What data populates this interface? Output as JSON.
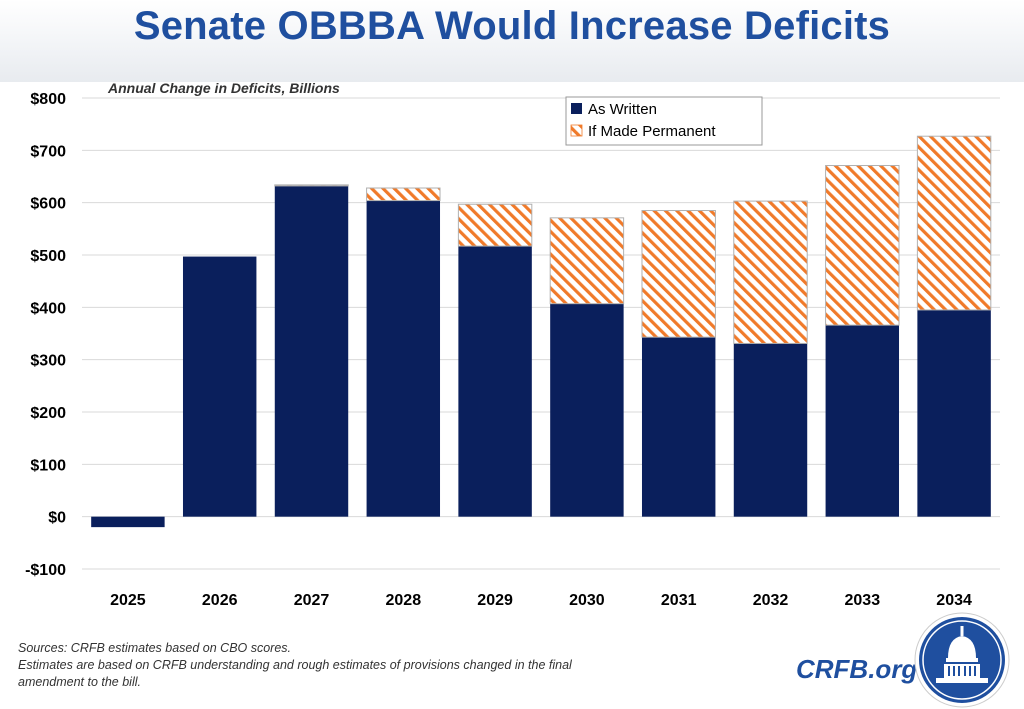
{
  "title": "Senate OBBBA Would Increase Deficits",
  "colors": {
    "as_written": "#0a1f5c",
    "permanent_stripe": "#f07a2a",
    "title": "#1f4f9f"
  },
  "chart_data": {
    "type": "bar",
    "stacked": true,
    "title": "Senate OBBBA Would Increase Deficits",
    "subtitle": "Annual Change in Deficits, Billions",
    "categories": [
      "2025",
      "2026",
      "2027",
      "2028",
      "2029",
      "2030",
      "2031",
      "2032",
      "2033",
      "2034"
    ],
    "series": [
      {
        "name": "As Written",
        "values": [
          -20,
          497,
          632,
          604,
          517,
          407,
          343,
          331,
          366,
          395
        ]
      },
      {
        "name": "If Made Permanent",
        "values": [
          0,
          0,
          2,
          24,
          80,
          164,
          242,
          272,
          305,
          332
        ]
      }
    ],
    "ylim": [
      -100,
      800
    ],
    "yticks": [
      -100,
      0,
      100,
      200,
      300,
      400,
      500,
      600,
      700,
      800
    ],
    "ytick_labels": [
      "-$100",
      "$0",
      "$100",
      "$200",
      "$300",
      "$400",
      "$500",
      "$600",
      "$700",
      "$800"
    ],
    "grid": true,
    "legend": "top-right",
    "xlabel": "",
    "ylabel": ""
  },
  "footer": {
    "source_line1": "Sources: CRFB estimates based on CBO scores.",
    "source_line2": "Estimates are based on CRFB understanding and rough estimates of provisions changed in the final",
    "source_line3": "amendment to the bill.",
    "brand": "CRFB.org",
    "logo_icon": "capitol-dome-seal-icon"
  }
}
